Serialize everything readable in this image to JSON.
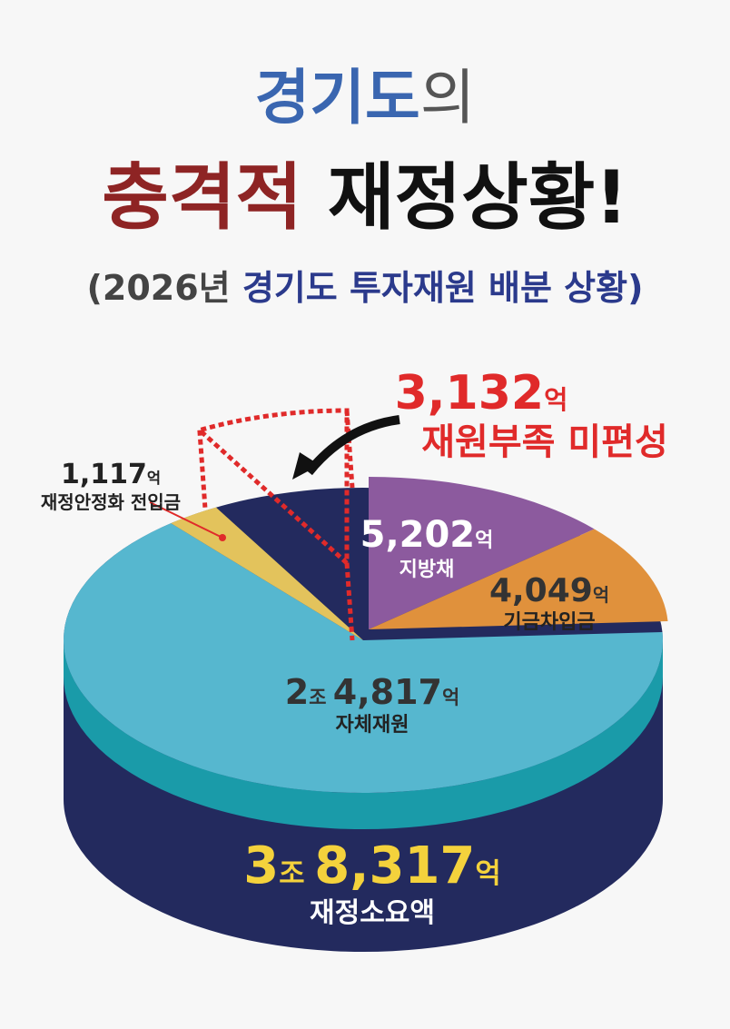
{
  "title": [
    [
      "경기도",
      "의"
    ],
    [
      "충격적",
      "재정상황!"
    ]
  ],
  "subtitle": [
    "(2026년",
    "경기도 투자재원 배분 상황)"
  ],
  "chart_data": {
    "type": "pie",
    "categories": [
      "지방채",
      "기금차입금",
      "자체재원",
      "재정안정화 전입금",
      "재원부족 미편성"
    ],
    "values": [
      5202,
      4049,
      24817,
      1117,
      3132
    ],
    "value_labels": [
      "5,202억",
      "4,049억",
      "2조 4,817억",
      "1,117억",
      "3,132억"
    ],
    "colors": [
      "#8c5a9e",
      "#e0913c",
      "#56b7cf",
      "#e3c35c",
      "#e02a2a"
    ],
    "total": {
      "value": 38317,
      "value_label": "3조 8,317억",
      "name": "재정소요액"
    }
  }
}
